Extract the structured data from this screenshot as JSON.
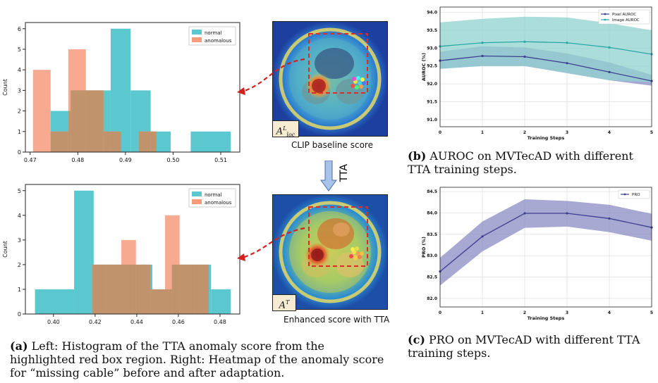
{
  "colors": {
    "normal": "#5bc8d0",
    "anomalous": "#f69b7c",
    "overlap": "#c1936c",
    "red": "#e02a2a",
    "line1": "#3f3f8f",
    "band1": "#8a8cc4",
    "line2": "#2aa6a6",
    "band2": "#8fd3cf",
    "tta_arrow": "#a9c2e8"
  },
  "heatmaps": {
    "top_label": "CLIP baseline score",
    "bottom_label": "Enhanced score with TTA",
    "top_tag_base": "A",
    "top_tag_sup": "L",
    "top_tag_sub": "loc",
    "bottom_tag_base": "A",
    "bottom_tag_sup": "T",
    "tta_text": "TTA"
  },
  "captions": {
    "a_tag": "(a)",
    "a_text": " Left: Histogram of the TTA anomaly score from the highlighted red box region. Right: Heatmap of the anomaly score for “missing cable” before and after adaptation.",
    "b_tag": "(b)",
    "b_text": " AUROC on MVTecAD with different TTA training steps.",
    "c_tag": "(c)",
    "c_text": " PRO on MVTecAD with different TTA training steps."
  },
  "chart_data": [
    {
      "id": "hist-top",
      "type": "bar",
      "ylabel": "Count",
      "xlabel": "",
      "xlim": [
        0.469,
        0.514
      ],
      "ylim": [
        0,
        6.3
      ],
      "xticks": [
        0.47,
        0.48,
        0.49,
        0.5,
        0.51
      ],
      "xtick_labels": [
        "0.47",
        "0.48",
        "0.49",
        "0.50",
        "0.51"
      ],
      "yticks": [
        0,
        1,
        2,
        3,
        4,
        5,
        6
      ],
      "legend": [
        "normal",
        "anomalous"
      ],
      "legend_position": "top-right",
      "series": [
        {
          "name": "normal",
          "bins": [
            [
              0.4743,
              0.4785,
              2
            ],
            [
              0.4785,
              0.4869,
              3
            ],
            [
              0.4869,
              0.4911,
              6
            ],
            [
              0.4911,
              0.4953,
              3
            ],
            [
              0.4953,
              0.4995,
              1
            ],
            [
              0.5037,
              0.5121,
              1
            ]
          ]
        },
        {
          "name": "anomalous",
          "bins": [
            [
              0.4706,
              0.4743,
              4
            ],
            [
              0.4743,
              0.478,
              1
            ],
            [
              0.478,
              0.4817,
              5
            ],
            [
              0.4817,
              0.4854,
              3
            ],
            [
              0.4854,
              0.4891,
              1
            ],
            [
              0.4928,
              0.4965,
              1
            ]
          ]
        }
      ]
    },
    {
      "id": "hist-bottom",
      "type": "bar",
      "ylabel": "Count",
      "xlabel": "",
      "xlim": [
        0.3865,
        0.4895
      ],
      "ylim": [
        0,
        5.25
      ],
      "xticks": [
        0.4,
        0.42,
        0.44,
        0.46,
        0.48
      ],
      "xtick_labels": [
        "0.40",
        "0.42",
        "0.44",
        "0.46",
        "0.48"
      ],
      "yticks": [
        0,
        1,
        2,
        3,
        4,
        5
      ],
      "legend": [
        "normal",
        "anomalous"
      ],
      "legend_position": "top-right",
      "series": [
        {
          "name": "normal",
          "bins": [
            [
              0.3911,
              0.4099,
              1
            ],
            [
              0.4099,
              0.4193,
              5
            ],
            [
              0.4193,
              0.4381,
              2
            ],
            [
              0.4381,
              0.4475,
              2
            ],
            [
              0.4475,
              0.4569,
              1
            ],
            [
              0.4569,
              0.4757,
              2
            ],
            [
              0.4757,
              0.4851,
              1
            ]
          ]
        },
        {
          "name": "anomalous",
          "bins": [
            [
              0.4186,
              0.4256,
              2
            ],
            [
              0.4256,
              0.4326,
              2
            ],
            [
              0.4326,
              0.4396,
              3
            ],
            [
              0.4396,
              0.4466,
              2
            ],
            [
              0.4466,
              0.4536,
              1
            ],
            [
              0.4536,
              0.4606,
              4
            ],
            [
              0.4606,
              0.4676,
              2
            ],
            [
              0.4676,
              0.4746,
              2
            ]
          ]
        }
      ]
    },
    {
      "id": "auroc",
      "type": "line",
      "xlabel": "Training Steps",
      "ylabel": "AUROC (%)",
      "x": [
        0,
        1,
        2,
        3,
        4,
        5
      ],
      "xlim": [
        0,
        5
      ],
      "ylim": [
        90.8,
        94.15
      ],
      "yticks": [
        91.0,
        91.5,
        92.0,
        92.5,
        93.0,
        93.5,
        94.0
      ],
      "ytick_labels": [
        "91.0",
        "91.5",
        "92.0",
        "92.5",
        "93.0",
        "93.5",
        "94.0"
      ],
      "legend_position": "top-right",
      "series": [
        {
          "name": "Pixel AUROC",
          "values": [
            92.65,
            92.78,
            92.76,
            92.58,
            92.33,
            92.08
          ],
          "lower": [
            92.42,
            92.5,
            92.5,
            92.3,
            92.1,
            91.95
          ],
          "upper": [
            92.9,
            93.05,
            93.02,
            92.85,
            92.6,
            92.25
          ],
          "color": "#3f3f8f",
          "band": "#8a8cc4"
        },
        {
          "name": "Image AUROC",
          "values": [
            93.05,
            93.15,
            93.18,
            93.15,
            93.02,
            92.83
          ],
          "lower": [
            92.42,
            92.5,
            92.5,
            92.3,
            92.1,
            92.05
          ],
          "upper": [
            93.72,
            93.82,
            93.88,
            93.86,
            93.7,
            93.5
          ],
          "color": "#2aa6a6",
          "band": "#8fd3cf"
        }
      ]
    },
    {
      "id": "pro",
      "type": "line",
      "xlabel": "Training Steps",
      "ylabel": "PRO (%)",
      "x": [
        0,
        1,
        2,
        3,
        4,
        5
      ],
      "xlim": [
        0,
        5
      ],
      "ylim": [
        81.8,
        84.6
      ],
      "yticks": [
        82.0,
        82.5,
        83.0,
        83.5,
        84.0,
        84.5
      ],
      "ytick_labels": [
        "82.0",
        "82.5",
        "83.0",
        "83.5",
        "84.0",
        "84.5"
      ],
      "legend_position": "top-right",
      "series": [
        {
          "name": "PRO",
          "values": [
            82.63,
            83.45,
            83.99,
            83.99,
            83.87,
            83.66
          ],
          "lower": [
            82.3,
            83.1,
            83.65,
            83.68,
            83.55,
            83.35
          ],
          "upper": [
            82.95,
            83.8,
            84.32,
            84.28,
            84.19,
            83.98
          ],
          "color": "#3f3f8f",
          "band": "#8a8cc4"
        }
      ]
    }
  ]
}
